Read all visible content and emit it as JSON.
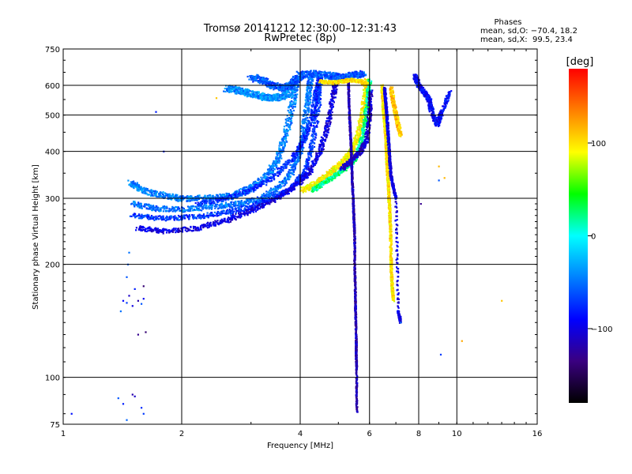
{
  "chart_data": {
    "type": "scatter",
    "title": "Tromsø 20141212 12:30:00–12:31:43",
    "subtitle": "RwPretec (8p)",
    "xlabel": "Frequency [MHz]",
    "ylabel": "Stationary phase Virtual Height [km]",
    "x_scale": "log",
    "y_scale": "log",
    "xlim": [
      1,
      16
    ],
    "ylim": [
      75,
      750
    ],
    "grid": true,
    "x_ticks": [
      1,
      2,
      4,
      6,
      8,
      10,
      16
    ],
    "x_tick_labels": [
      "1",
      "2",
      "4",
      "6",
      "8",
      "10",
      "16"
    ],
    "y_ticks": [
      75,
      100,
      200,
      300,
      400,
      500,
      600,
      750
    ],
    "y_tick_labels": [
      "75",
      "100",
      "200",
      "300",
      "400",
      "500",
      "600",
      "750"
    ],
    "stats": {
      "heading": "Phases",
      "line_o": "mean, sd,O: −70.4, 18.2",
      "line_x": "mean, sd,X:  99.5, 23.4"
    },
    "colorbar": {
      "label": "[deg]",
      "range": [
        -180,
        180
      ],
      "ticks": [
        100,
        0,
        -100
      ],
      "tick_labels": [
        "100",
        "0",
        "−100"
      ],
      "colors": [
        "#ff0000",
        "#ff7f00",
        "#ffff00",
        "#00ff00",
        "#00ffff",
        "#0080ff",
        "#0000ff",
        "#3a0080",
        "#000000"
      ]
    },
    "series": [
      {
        "points": [
          [
            1.05,
            80,
            -85
          ],
          [
            1.38,
            88,
            -60
          ],
          [
            1.42,
            85,
            -80
          ],
          [
            1.5,
            90,
            -120
          ],
          [
            1.52,
            89,
            -110
          ],
          [
            1.58,
            83,
            -75
          ],
          [
            1.6,
            80,
            -70
          ],
          [
            1.45,
            77,
            -55
          ],
          [
            1.42,
            160,
            -90
          ],
          [
            1.45,
            158,
            -70
          ],
          [
            1.47,
            165,
            -110
          ],
          [
            1.5,
            155,
            -100
          ],
          [
            1.52,
            172,
            -80
          ],
          [
            1.55,
            160,
            -120
          ],
          [
            1.58,
            157,
            -60
          ],
          [
            1.6,
            162,
            -95
          ],
          [
            1.4,
            150,
            -50
          ],
          [
            1.55,
            130,
            -130
          ],
          [
            1.62,
            132,
            -140
          ],
          [
            1.45,
            185,
            -60
          ],
          [
            1.46,
            200,
            -55
          ],
          [
            1.47,
            215,
            -50
          ],
          [
            1.6,
            175,
            -140
          ],
          [
            1.72,
            510,
            -80
          ],
          [
            1.8,
            400,
            -80
          ],
          [
            2.45,
            555,
            110
          ],
          [
            7.2,
            140,
            -55
          ],
          [
            9.1,
            115,
            -70
          ],
          [
            10.3,
            125,
            120
          ],
          [
            13.0,
            160,
            110
          ],
          [
            9.0,
            335,
            -60
          ],
          [
            9.3,
            340,
            115
          ],
          [
            8.1,
            290,
            -130
          ],
          [
            9.0,
            365,
            115
          ]
        ],
        "traces": [
          [
            [
              [
                1.48,
                330
              ],
              [
                1.6,
                315
              ],
              [
                1.8,
                305
              ],
              [
                2.0,
                300
              ],
              [
                2.3,
                300
              ],
              [
                2.7,
                305
              ],
              [
                3.0,
                320
              ],
              [
                3.3,
                345
              ],
              [
                3.5,
                380
              ],
              [
                3.65,
                430
              ],
              [
                3.8,
                520
              ],
              [
                3.9,
                600
              ]
            ],
            -45,
            0.018
          ],
          [
            [
              [
                1.5,
                290
              ],
              [
                1.7,
                282
              ],
              [
                2.0,
                280
              ],
              [
                2.4,
                285
              ],
              [
                2.8,
                290
              ],
              [
                3.2,
                300
              ],
              [
                3.5,
                320
              ],
              [
                3.8,
                350
              ],
              [
                4.0,
                400
              ],
              [
                4.1,
                470
              ],
              [
                4.2,
                560
              ],
              [
                4.25,
                630
              ]
            ],
            -50,
            0.016
          ],
          [
            [
              [
                1.5,
                270
              ],
              [
                1.8,
                265
              ],
              [
                2.2,
                268
              ],
              [
                2.6,
                275
              ],
              [
                3.0,
                285
              ],
              [
                3.4,
                300
              ],
              [
                3.8,
                320
              ],
              [
                4.1,
                350
              ],
              [
                4.3,
                420
              ],
              [
                4.45,
                530
              ],
              [
                4.5,
                620
              ]
            ],
            -70,
            0.014
          ],
          [
            [
              [
                1.55,
                250
              ],
              [
                1.8,
                245
              ],
              [
                2.2,
                250
              ],
              [
                2.6,
                262
              ],
              [
                3.0,
                278
              ],
              [
                3.5,
                300
              ],
              [
                3.9,
                325
              ],
              [
                4.2,
                350
              ],
              [
                4.5,
                400
              ],
              [
                4.7,
                470
              ],
              [
                4.85,
                560
              ],
              [
                4.95,
                630
              ]
            ],
            -100,
            0.014
          ],
          [
            [
              [
                2.2,
                290
              ],
              [
                2.6,
                300
              ],
              [
                3.0,
                315
              ],
              [
                3.4,
                340
              ],
              [
                3.8,
                380
              ],
              [
                4.1,
                430
              ],
              [
                4.3,
                500
              ],
              [
                4.4,
                580
              ],
              [
                4.5,
                640
              ]
            ],
            -75,
            0.014
          ],
          [
            [
              [
                4.05,
                315
              ],
              [
                4.3,
                325
              ],
              [
                4.6,
                340
              ],
              [
                4.9,
                360
              ],
              [
                5.2,
                380
              ],
              [
                5.4,
                400
              ],
              [
                5.6,
                440
              ],
              [
                5.75,
                500
              ],
              [
                5.85,
                560
              ],
              [
                5.9,
                620
              ]
            ],
            95,
            0.014
          ],
          [
            [
              [
                4.3,
                315
              ],
              [
                4.6,
                330
              ],
              [
                4.9,
                345
              ],
              [
                5.2,
                360
              ],
              [
                5.5,
                380
              ],
              [
                5.7,
                420
              ],
              [
                5.85,
                480
              ],
              [
                5.95,
                560
              ],
              [
                6.0,
                620
              ]
            ],
            20,
            0.012
          ],
          [
            [
              [
                5.1,
                360
              ],
              [
                5.4,
                380
              ],
              [
                5.7,
                400
              ],
              [
                5.9,
                430
              ],
              [
                6.0,
                500
              ],
              [
                6.05,
                580
              ]
            ],
            -110,
            0.012
          ],
          [
            [
              [
                5.3,
                620
              ],
              [
                5.32,
                540
              ],
              [
                5.35,
                470
              ],
              [
                5.38,
                420
              ],
              [
                5.4,
                380
              ],
              [
                5.42,
                340
              ],
              [
                5.45,
                300
              ],
              [
                5.47,
                270
              ],
              [
                5.5,
                240
              ],
              [
                5.5,
                200
              ],
              [
                5.52,
                170
              ],
              [
                5.53,
                150
              ],
              [
                5.55,
                125
              ],
              [
                5.55,
                115
              ],
              [
                5.56,
                105
              ],
              [
                5.57,
                80
              ]
            ],
            -115,
            0.004
          ],
          [
            [
              [
                6.45,
                600
              ],
              [
                6.5,
                520
              ],
              [
                6.55,
                480
              ],
              [
                6.6,
                440
              ],
              [
                6.62,
                400
              ],
              [
                6.65,
                360
              ],
              [
                6.7,
                330
              ],
              [
                6.72,
                300
              ],
              [
                6.75,
                280
              ],
              [
                6.78,
                250
              ],
              [
                6.8,
                210
              ],
              [
                6.82,
                190
              ],
              [
                6.85,
                175
              ],
              [
                6.9,
                160
              ]
            ],
            100,
            0.006
          ],
          [
            [
              [
                6.55,
                590
              ],
              [
                6.6,
                540
              ],
              [
                6.65,
                490
              ],
              [
                6.7,
                430
              ],
              [
                6.75,
                380
              ],
              [
                6.8,
                345
              ],
              [
                6.9,
                320
              ],
              [
                7.0,
                300
              ],
              [
                7.1,
                150
              ],
              [
                7.2,
                140
              ]
            ],
            -100,
            0.006
          ],
          [
            [
              [
                6.8,
                590
              ],
              [
                6.9,
                540
              ],
              [
                7.0,
                500
              ],
              [
                7.1,
                470
              ],
              [
                7.2,
                440
              ]
            ],
            110,
            0.01
          ],
          [
            [
              [
                7.8,
                640
              ],
              [
                8.0,
                600
              ],
              [
                8.3,
                570
              ],
              [
                8.5,
                550
              ],
              [
                8.6,
                520
              ],
              [
                8.9,
                470
              ],
              [
                9.1,
                500
              ],
              [
                9.6,
                580
              ]
            ],
            -90,
            0.012
          ],
          [
            [
              [
                3.0,
                630
              ],
              [
                3.2,
                620
              ],
              [
                3.4,
                600
              ],
              [
                3.6,
                590
              ],
              [
                3.8,
                600
              ],
              [
                3.9,
                620
              ],
              [
                4.0,
                640
              ],
              [
                4.3,
                645
              ],
              [
                4.6,
                640
              ],
              [
                4.9,
                635
              ],
              [
                5.2,
                630
              ],
              [
                5.5,
                640
              ],
              [
                5.8,
                645
              ]
            ],
            -60,
            0.02
          ],
          [
            [
              [
                2.6,
                590
              ],
              [
                2.8,
                580
              ],
              [
                3.0,
                570
              ],
              [
                3.2,
                560
              ],
              [
                3.4,
                555
              ],
              [
                3.6,
                560
              ],
              [
                3.8,
                575
              ]
            ],
            -40,
            0.02
          ],
          [
            [
              [
                4.5,
                615
              ],
              [
                4.8,
                610
              ],
              [
                5.1,
                615
              ],
              [
                5.4,
                620
              ],
              [
                5.7,
                615
              ],
              [
                5.9,
                605
              ]
            ],
            100,
            0.01
          ]
        ]
      }
    ]
  }
}
